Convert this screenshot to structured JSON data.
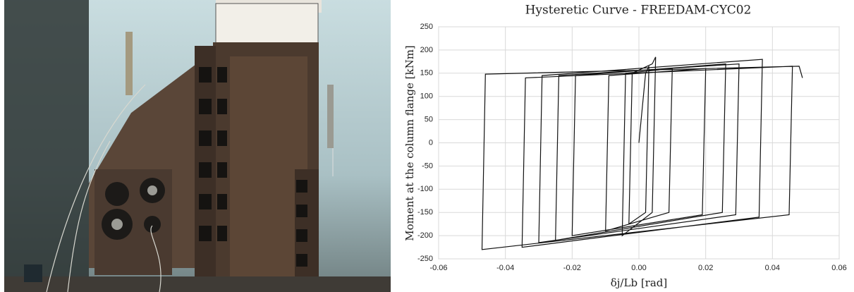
{
  "chart_data": {
    "type": "line",
    "title": "Hysteretic Curve - FREEDAM-CYC02",
    "y_label": "Moment at the column flange [kNm]",
    "x_label": "δj/Lb [rad]",
    "x": [
      0,
      0.002,
      0.003,
      0.002,
      -0.003,
      -0.002,
      0.004,
      0.005,
      0.004,
      -0.005,
      -0.004,
      0.01,
      0.009,
      -0.01,
      -0.009,
      0.02,
      0.019,
      -0.02,
      -0.019,
      0.026,
      0.025,
      -0.025,
      -0.024,
      0.03,
      0.029,
      -0.03,
      -0.029,
      0.037,
      0.036,
      -0.035,
      -0.034,
      0.046,
      0.045,
      -0.047,
      -0.046,
      0.048,
      0.049
    ],
    "series": [
      {
        "color": "#111111",
        "values": [
          0,
          150,
          165,
          -150,
          -175,
          150,
          170,
          185,
          -150,
          -200,
          150,
          160,
          -150,
          -190,
          145,
          160,
          -155,
          -200,
          145,
          170,
          -150,
          -210,
          145,
          170,
          -155,
          -215,
          145,
          180,
          -160,
          -225,
          140,
          165,
          -155,
          -230,
          148,
          165,
          140
        ]
      }
    ],
    "xlim": [
      -0.06,
      0.06
    ],
    "xticks": [
      -0.06,
      -0.04,
      -0.02,
      {
        "value": 0,
        "label": "0.00"
      },
      0.02,
      0.04,
      0.06
    ],
    "ylim": [
      -250,
      250
    ],
    "yticks": [
      -250,
      -200,
      -150,
      -100,
      -50,
      0,
      50,
      100,
      150,
      200,
      250
    ],
    "grid": true
  }
}
